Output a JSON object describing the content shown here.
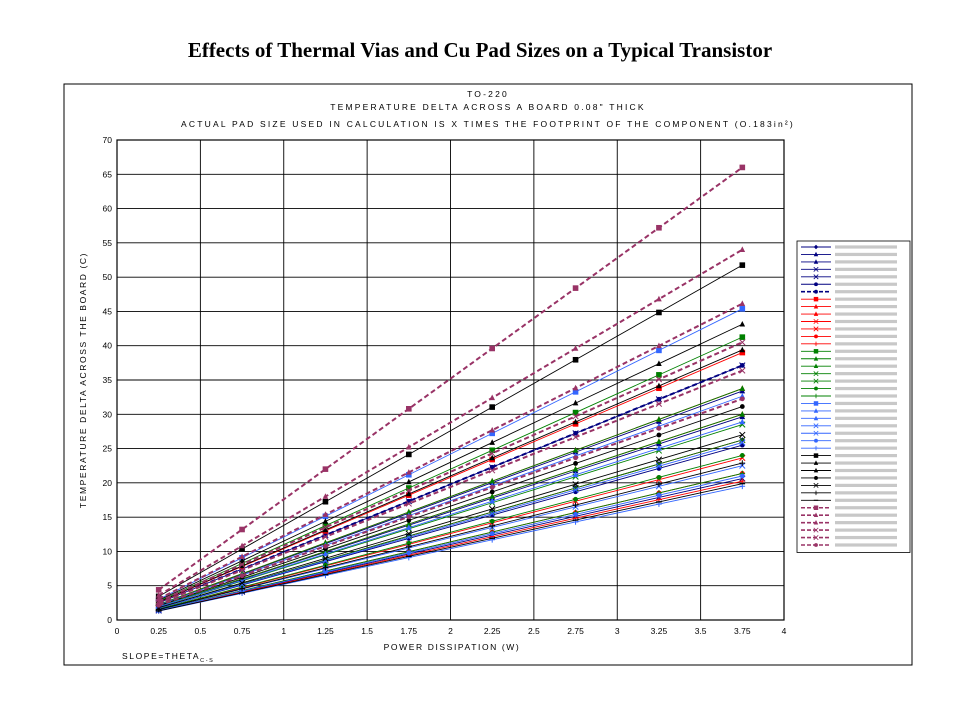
{
  "slide_title": "Effects of Thermal Vias and Cu Pad Sizes on a Typical Transistor",
  "chart_data": {
    "type": "line",
    "title_lines": [
      "TO-220",
      "TEMPERATURE DELTA ACROSS A BOARD 0.08\" THICK",
      "ACTUAL PAD SIZE USED IN CALCULATION IS X TIMES THE FOOTPRINT OF THE COMPONENT (O.183in²)"
    ],
    "xlabel": "POWER DISSIPATION (W)",
    "ylabel": "TEMPERATURE DELTA ACROSS THE BOARD (C)",
    "footnote": "SLOPE=THETA",
    "footnote_sub": "C-S",
    "xlim": [
      0,
      4
    ],
    "ylim": [
      0,
      70
    ],
    "xticks": [
      "0",
      "0.25",
      "0.5",
      "0.75",
      "1",
      "1.25",
      "1.5",
      "1.75",
      "2",
      "2.25",
      "2.5",
      "2.75",
      "3",
      "3.25",
      "3.5",
      "3.75",
      "4"
    ],
    "yticks": [
      "0",
      "5",
      "10",
      "15",
      "20",
      "25",
      "30",
      "35",
      "40",
      "45",
      "50",
      "55",
      "60",
      "65",
      "70"
    ],
    "grid": true,
    "legend_position": "right",
    "x": [
      0.25,
      0.75,
      1.25,
      1.75,
      2.25,
      2.75,
      3.25,
      3.75
    ],
    "series": [
      {
        "slope": 7.0,
        "color": "#000080",
        "marker": "diamond",
        "dash": false,
        "bold": false
      },
      {
        "slope": 7.9,
        "color": "#000080",
        "marker": "triangle",
        "dash": false,
        "bold": false
      },
      {
        "slope": 8.9,
        "color": "#000080",
        "marker": "triangle",
        "dash": false,
        "bold": false
      },
      {
        "slope": 9.9,
        "color": "#000080",
        "marker": "x",
        "dash": false,
        "bold": false
      },
      {
        "slope": 5.5,
        "color": "#000080",
        "marker": "x",
        "dash": false,
        "bold": false
      },
      {
        "slope": 6.8,
        "color": "#000080",
        "marker": "circle",
        "dash": false,
        "bold": false
      },
      {
        "slope": 9.9,
        "color": "#000080",
        "marker": "circle",
        "dash": true,
        "bold": true
      },
      {
        "slope": 10.4,
        "color": "#ff0000",
        "marker": "square",
        "dash": false,
        "bold": false
      },
      {
        "slope": 9.0,
        "color": "#ff0000",
        "marker": "triangle",
        "dash": false,
        "bold": false
      },
      {
        "slope": 8.0,
        "color": "#ff0000",
        "marker": "triangle",
        "dash": false,
        "bold": false
      },
      {
        "slope": 7.0,
        "color": "#ff0000",
        "marker": "x",
        "dash": false,
        "bold": false
      },
      {
        "slope": 6.3,
        "color": "#ff0000",
        "marker": "x",
        "dash": false,
        "bold": false
      },
      {
        "slope": 5.7,
        "color": "#ff0000",
        "marker": "circle",
        "dash": false,
        "bold": false
      },
      {
        "slope": 5.4,
        "color": "#ff0000",
        "marker": "plus",
        "dash": false,
        "bold": false
      },
      {
        "slope": 11.0,
        "color": "#008000",
        "marker": "square",
        "dash": false,
        "bold": false
      },
      {
        "slope": 9.0,
        "color": "#008000",
        "marker": "triangle",
        "dash": false,
        "bold": false
      },
      {
        "slope": 8.0,
        "color": "#008000",
        "marker": "triangle",
        "dash": false,
        "bold": false
      },
      {
        "slope": 7.6,
        "color": "#008000",
        "marker": "x",
        "dash": false,
        "bold": false
      },
      {
        "slope": 7.0,
        "color": "#008000",
        "marker": "x",
        "dash": false,
        "bold": false
      },
      {
        "slope": 6.4,
        "color": "#008000",
        "marker": "circle",
        "dash": false,
        "bold": false
      },
      {
        "slope": 5.7,
        "color": "#008000",
        "marker": "plus",
        "dash": false,
        "bold": false
      },
      {
        "slope": 12.1,
        "color": "#3366ff",
        "marker": "square",
        "dash": false,
        "bold": false
      },
      {
        "slope": 8.7,
        "color": "#3366ff",
        "marker": "triangle",
        "dash": false,
        "bold": false
      },
      {
        "slope": 7.7,
        "color": "#3366ff",
        "marker": "triangle",
        "dash": false,
        "bold": false
      },
      {
        "slope": 6.9,
        "color": "#3366ff",
        "marker": "x",
        "dash": false,
        "bold": false
      },
      {
        "slope": 6.0,
        "color": "#3366ff",
        "marker": "x",
        "dash": false,
        "bold": false
      },
      {
        "slope": 5.6,
        "color": "#3366ff",
        "marker": "circle",
        "dash": false,
        "bold": false
      },
      {
        "slope": 5.2,
        "color": "#3366ff",
        "marker": "plus",
        "dash": false,
        "bold": false
      },
      {
        "slope": 13.8,
        "color": "#000000",
        "marker": "square",
        "dash": false,
        "bold": false
      },
      {
        "slope": 11.5,
        "color": "#000000",
        "marker": "triangle",
        "dash": false,
        "bold": false
      },
      {
        "slope": 10.5,
        "color": "#000000",
        "marker": "triangle",
        "dash": false,
        "bold": false
      },
      {
        "slope": 8.3,
        "color": "#000000",
        "marker": "circle",
        "dash": false,
        "bold": false
      },
      {
        "slope": 7.2,
        "color": "#000000",
        "marker": "x",
        "dash": false,
        "bold": false
      },
      {
        "slope": 6.1,
        "color": "#000000",
        "marker": "plus",
        "dash": false,
        "bold": false
      },
      {
        "slope": 5.3,
        "color": "#000000",
        "marker": "dash",
        "dash": false,
        "bold": false
      },
      {
        "slope": 17.6,
        "color": "#993366",
        "marker": "square",
        "dash": true,
        "bold": true
      },
      {
        "slope": 14.4,
        "color": "#993366",
        "marker": "triangle",
        "dash": true,
        "bold": true
      },
      {
        "slope": 12.3,
        "color": "#993366",
        "marker": "triangle",
        "dash": true,
        "bold": true
      },
      {
        "slope": 10.8,
        "color": "#993366",
        "marker": "x",
        "dash": true,
        "bold": true
      },
      {
        "slope": 9.7,
        "color": "#993366",
        "marker": "x",
        "dash": true,
        "bold": true
      },
      {
        "slope": 8.6,
        "color": "#993366",
        "marker": "circle",
        "dash": true,
        "bold": true
      }
    ]
  }
}
